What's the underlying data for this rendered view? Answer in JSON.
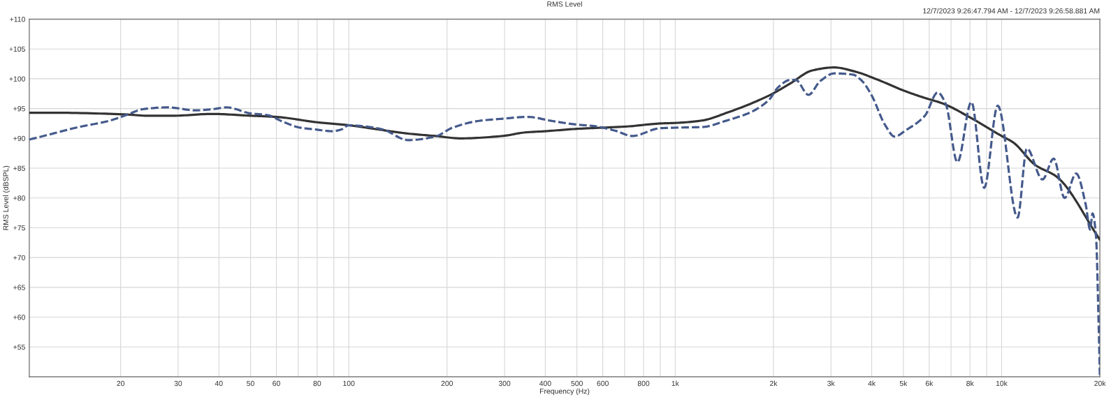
{
  "chart_data": {
    "type": "line",
    "title": "RMS Level",
    "xlabel": "Frequency (Hz)",
    "ylabel": "RMS Level (dBSPL)",
    "annotations": [
      "12/7/2023 9:26:47.794 AM - 12/7/2023 9:26:58.881 AM"
    ],
    "log": "x",
    "grid": true,
    "xlim": [
      10.5,
      20000
    ],
    "ylim": [
      50,
      110
    ],
    "xticks": [
      20,
      30,
      40,
      50,
      60,
      {
        "value": 70,
        "label": null
      },
      80,
      {
        "value": 90,
        "label": null
      },
      100,
      200,
      300,
      400,
      500,
      600,
      {
        "value": 700,
        "label": null
      },
      800,
      {
        "value": 900,
        "label": null
      },
      {
        "value": 1000,
        "label": "1k"
      },
      {
        "value": 2000,
        "label": "2k"
      },
      {
        "value": 3000,
        "label": "3k"
      },
      {
        "value": 4000,
        "label": "4k"
      },
      {
        "value": 5000,
        "label": "5k"
      },
      {
        "value": 6000,
        "label": "6k"
      },
      {
        "value": 7000,
        "label": null
      },
      {
        "value": 8000,
        "label": "8k"
      },
      {
        "value": 9000,
        "label": null
      },
      {
        "value": 10000,
        "label": "10k"
      },
      {
        "value": 20000,
        "label": "20k"
      }
    ],
    "yticks": [
      {
        "value": 55,
        "label": "+55"
      },
      {
        "value": 60,
        "label": "+60"
      },
      {
        "value": 65,
        "label": "+65"
      },
      {
        "value": 70,
        "label": "+70"
      },
      {
        "value": 75,
        "label": "+75"
      },
      {
        "value": 80,
        "label": "+80"
      },
      {
        "value": 85,
        "label": "+85"
      },
      {
        "value": 90,
        "label": "+90"
      },
      {
        "value": 95,
        "label": "+95"
      },
      {
        "value": 100,
        "label": "+100"
      },
      {
        "value": 105,
        "label": "+105"
      },
      {
        "value": 110,
        "label": "+110"
      }
    ],
    "series": [
      {
        "color": "#333333",
        "line_style": "solid",
        "x": [
          10.5,
          12.5,
          21,
          24,
          29,
          38,
          50,
          60,
          80,
          100,
          123,
          152,
          184,
          220,
          296,
          347,
          400,
          500,
          600,
          713,
          900,
          1010,
          1210,
          1440,
          1940,
          2250,
          2630,
          3070,
          3560,
          4190,
          5020,
          5730,
          6640,
          7950,
          10000,
          10860,
          12700,
          14720,
          20000
        ],
        "values": [
          94.3,
          94.3,
          94.0,
          93.8,
          93.8,
          94.1,
          93.8,
          93.6,
          92.7,
          92.2,
          91.5,
          90.8,
          90.4,
          90.0,
          90.4,
          91.0,
          91.2,
          91.6,
          91.8,
          92.0,
          92.5,
          92.6,
          93.0,
          94.3,
          97.2,
          99.2,
          101.4,
          101.9,
          101.2,
          99.8,
          98.0,
          96.9,
          95.8,
          93.6,
          90.4,
          89.3,
          85.5,
          83.6,
          73.0
        ]
      },
      {
        "color": "#455a8c",
        "line_style": "dashed",
        "x": [
          10.5,
          12.2,
          14.6,
          18.6,
          21,
          23.4,
          27.9,
          33.9,
          38.3,
          42.2,
          49.9,
          56.4,
          62.8,
          70.9,
          78.8,
          89.2,
          94.9,
          100,
          108,
          127,
          152,
          184,
          208,
          248,
          296,
          353,
          421,
          502,
          557,
          654,
          739,
          897,
          1010,
          1210,
          1440,
          1720,
          1940,
          2070,
          2250,
          2340,
          2560,
          2780,
          3070,
          3500,
          3740,
          3990,
          4400,
          4700,
          5100,
          5820,
          6370,
          6750,
          7320,
          8080,
          8840,
          9730,
          11190,
          11950,
          13340,
          14440,
          15590,
          16920,
          18080,
          18670,
          18990,
          19460,
          19800,
          20000
        ],
        "values": [
          89.8,
          90.7,
          91.8,
          93.0,
          94.0,
          94.9,
          95.2,
          94.7,
          94.9,
          95.2,
          94.2,
          93.9,
          92.8,
          91.8,
          91.5,
          91.2,
          91.5,
          92.2,
          92.1,
          91.5,
          89.7,
          90.3,
          91.8,
          92.9,
          93.3,
          93.6,
          92.9,
          92.3,
          92.1,
          91.3,
          90.4,
          91.7,
          91.8,
          91.9,
          93.0,
          94.5,
          96.5,
          98.6,
          99.8,
          99.8,
          97.3,
          99.6,
          100.9,
          100.7,
          99.6,
          97.3,
          92.2,
          90.3,
          91.4,
          93.8,
          97.7,
          95.7,
          86.0,
          96.1,
          81.7,
          95.5,
          76.7,
          88.3,
          83.1,
          86.6,
          80.0,
          84.1,
          79.0,
          74.7,
          77.4,
          73.6,
          60,
          50
        ]
      }
    ]
  }
}
